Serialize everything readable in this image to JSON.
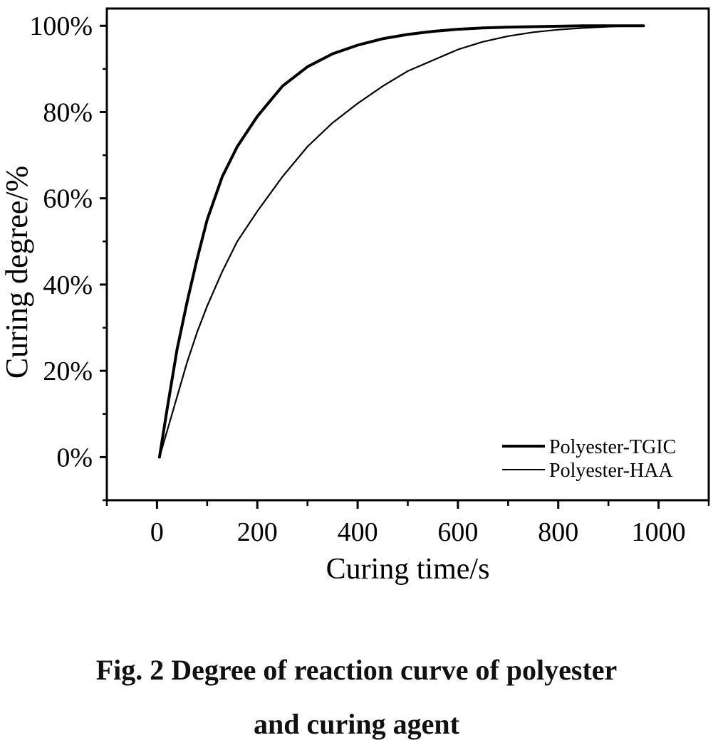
{
  "chart_data": {
    "type": "line",
    "title": "",
    "xlabel": "Curing time/s",
    "ylabel": "Curing degree/%",
    "xlim": [
      -100,
      1100
    ],
    "ylim": [
      -10,
      104
    ],
    "xticks": [
      0,
      200,
      400,
      600,
      800,
      1000
    ],
    "xtick_labels": [
      "0",
      "200",
      "400",
      "600",
      "800",
      "1000"
    ],
    "yticks": [
      0,
      20,
      40,
      60,
      80,
      100
    ],
    "ytick_labels": [
      "0%",
      "20%",
      "40%",
      "60%",
      "80%",
      "100%"
    ],
    "grid": false,
    "legend_position": "bottom-right",
    "series": [
      {
        "name": "Polyester-TGIC",
        "line": "thick",
        "color": "#000000",
        "x": [
          5,
          20,
          40,
          60,
          80,
          100,
          130,
          160,
          200,
          250,
          300,
          350,
          400,
          450,
          500,
          550,
          600,
          650,
          700,
          750,
          800,
          850,
          900,
          950,
          970
        ],
        "y": [
          0,
          11,
          25,
          36,
          46,
          55,
          65,
          72,
          79,
          86,
          90.5,
          93.5,
          95.5,
          97,
          98,
          98.7,
          99.2,
          99.5,
          99.7,
          99.8,
          99.9,
          100,
          100,
          100,
          100
        ]
      },
      {
        "name": "Polyester-HAA",
        "line": "thin",
        "color": "#000000",
        "x": [
          5,
          20,
          40,
          60,
          80,
          100,
          130,
          160,
          200,
          250,
          300,
          350,
          400,
          450,
          500,
          550,
          600,
          650,
          700,
          750,
          800,
          850,
          900,
          950,
          970
        ],
        "y": [
          0,
          6,
          14,
          22,
          29,
          35,
          43,
          50,
          57,
          65,
          72,
          77.5,
          82,
          86,
          89.5,
          92,
          94.5,
          96.3,
          97.6,
          98.5,
          99.1,
          99.5,
          99.8,
          100,
          100
        ]
      }
    ]
  },
  "caption": {
    "line1": "Fig. 2    Degree of reaction curve of polyester",
    "line2": "and curing agent"
  }
}
